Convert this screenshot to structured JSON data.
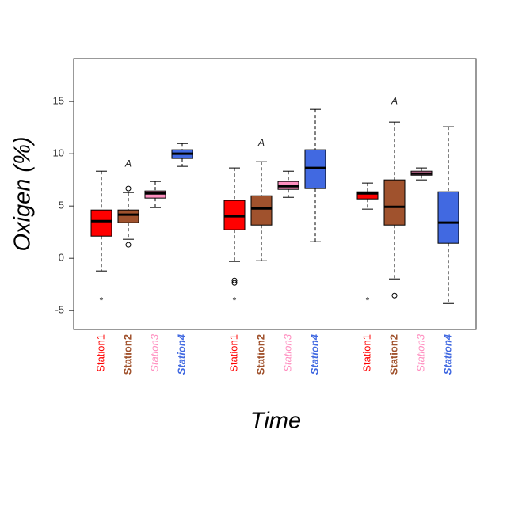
{
  "chart_data": {
    "type": "box",
    "x_label": "Time",
    "y_label": "Oxigen (%)",
    "ylim": [
      -6.8,
      19.1
    ],
    "yticks": [
      -5,
      0,
      5,
      10,
      15
    ],
    "boxes": [
      {
        "label": "Station1",
        "color": "#ff0000",
        "label_style": "normal",
        "whisker_low": -1.21,
        "q1": 2.12,
        "median": 3.56,
        "q3": 4.62,
        "whisker_high": 8.33,
        "outliers": [],
        "annotation": {
          "text": "*",
          "y": -4.1
        }
      },
      {
        "label": "Station2",
        "color": "#a0522d",
        "label_style": "bold",
        "whisker_low": 1.82,
        "q1": 3.41,
        "median": 4.17,
        "q3": 4.62,
        "whisker_high": 6.29,
        "outliers": [
          6.67,
          1.29
        ],
        "annotation": {
          "text": "A",
          "y": 9.0
        }
      },
      {
        "label": "Station3",
        "color": "#ff8fc0",
        "label_style": "italic",
        "whisker_low": 4.85,
        "q1": 5.76,
        "median": 6.21,
        "q3": 6.44,
        "whisker_high": 7.35,
        "outliers": []
      },
      {
        "label": "Station4",
        "color": "#4169e1",
        "label_style": "bold italic",
        "whisker_low": 8.79,
        "q1": 9.55,
        "median": 10.0,
        "q3": 10.38,
        "whisker_high": 10.98,
        "outliers": []
      },
      {
        "label": "Station1",
        "color": "#ff0000",
        "label_style": "normal",
        "whisker_low": -0.3,
        "q1": 2.73,
        "median": 4.02,
        "q3": 5.53,
        "whisker_high": 8.64,
        "outliers": [
          -2.12,
          -2.35
        ],
        "annotation": {
          "text": "*",
          "y": -4.1
        }
      },
      {
        "label": "Station2",
        "color": "#a0522d",
        "label_style": "bold",
        "whisker_low": -0.23,
        "q1": 3.18,
        "median": 4.77,
        "q3": 5.98,
        "whisker_high": 9.24,
        "outliers": [],
        "annotation": {
          "text": "A",
          "y": 11.0
        }
      },
      {
        "label": "Station3",
        "color": "#ff8fc0",
        "label_style": "italic",
        "whisker_low": 5.83,
        "q1": 6.59,
        "median": 6.89,
        "q3": 7.35,
        "whisker_high": 8.33,
        "outliers": []
      },
      {
        "label": "Station4",
        "color": "#4169e1",
        "label_style": "bold italic",
        "whisker_low": 1.59,
        "q1": 6.67,
        "median": 8.64,
        "q3": 10.38,
        "whisker_high": 14.24,
        "outliers": []
      },
      {
        "label": "Station1",
        "color": "#ff0000",
        "label_style": "normal",
        "whisker_low": 4.7,
        "q1": 5.68,
        "median": 6.21,
        "q3": 6.36,
        "whisker_high": 7.2,
        "outliers": [],
        "annotation": {
          "text": "*",
          "y": -4.1
        }
      },
      {
        "label": "Station2",
        "color": "#a0522d",
        "label_style": "bold",
        "whisker_low": -1.97,
        "q1": 3.18,
        "median": 4.92,
        "q3": 7.5,
        "whisker_high": 13.03,
        "outliers": [
          -3.56
        ],
        "annotation": {
          "text": "A",
          "y": 15.0
        }
      },
      {
        "label": "Station3",
        "color": "#ff8fc0",
        "label_style": "italic",
        "whisker_low": 7.5,
        "q1": 7.95,
        "median": 8.11,
        "q3": 8.33,
        "whisker_high": 8.64,
        "outliers": []
      },
      {
        "label": "Station4",
        "color": "#4169e1",
        "label_style": "bold italic",
        "whisker_low": -4.32,
        "q1": 1.44,
        "median": 3.41,
        "q3": 6.36,
        "whisker_high": 12.58,
        "outliers": []
      }
    ]
  }
}
